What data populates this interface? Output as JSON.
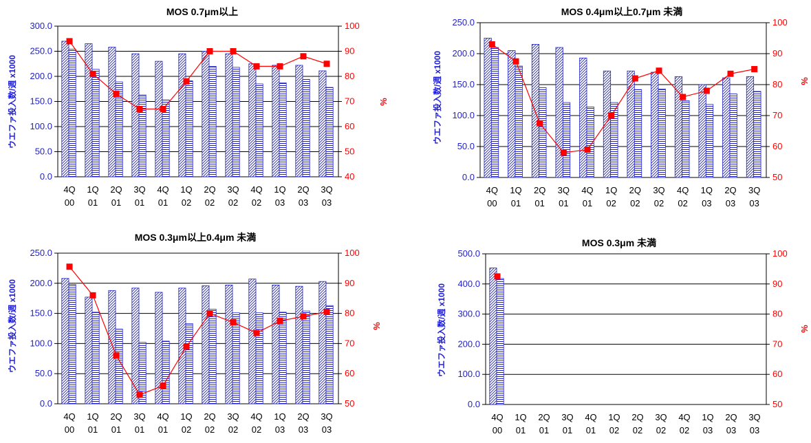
{
  "colors": {
    "bar_outline": "#1f1fd0",
    "bar_fill_a": "#ffffff",
    "hatch_diagonal": "#1f1fd0",
    "hatch_horizontal": "#1f1fd0",
    "line": "#ff0000",
    "marker": "#ff0000",
    "left_axis_text": "#1f1fd0",
    "right_axis_text": "#ff0000",
    "gridline": "#000000"
  },
  "chart_data": [
    {
      "type": "bar",
      "title": "MOS 0.7μm以上",
      "ylabel": "ウエファ投入数/週 x1000",
      "y2label": "%",
      "categories": [
        [
          "4Q",
          "00"
        ],
        [
          "1Q",
          "01"
        ],
        [
          "2Q",
          "01"
        ],
        [
          "3Q",
          "01"
        ],
        [
          "4Q",
          "01"
        ],
        [
          "1Q",
          "02"
        ],
        [
          "2Q",
          "02"
        ],
        [
          "3Q",
          "02"
        ],
        [
          "4Q",
          "02"
        ],
        [
          "1Q",
          "03"
        ],
        [
          "2Q",
          "03"
        ],
        [
          "3Q",
          "03"
        ]
      ],
      "ylim": [
        0,
        300
      ],
      "yticks": [
        "0.0",
        "50.0",
        "100.0",
        "150.0",
        "200.0",
        "250.0",
        "300.0"
      ],
      "y2lim": [
        40,
        100
      ],
      "y2ticks": [
        "40",
        "50",
        "60",
        "70",
        "80",
        "90",
        "100"
      ],
      "series": [
        {
          "kind": "bar",
          "pattern": "diagonal",
          "values": [
            270,
            265,
            258,
            245,
            230,
            245,
            250,
            245,
            225,
            222,
            222,
            211
          ]
        },
        {
          "kind": "bar",
          "pattern": "horizontal",
          "values": [
            254,
            214,
            189,
            163,
            153,
            191,
            220,
            218,
            185,
            187,
            194,
            178
          ]
        },
        {
          "kind": "line",
          "axis": "right",
          "values": [
            94,
            81,
            73,
            67,
            67,
            78,
            90,
            90,
            84,
            84,
            88,
            85
          ]
        }
      ]
    },
    {
      "type": "bar",
      "title": "MOS 0.4μm以上0.7μm 未満",
      "ylabel": "ウエファ投入数/週 x1000",
      "y2label": "%",
      "categories": [
        [
          "4Q",
          "00"
        ],
        [
          "1Q",
          "01"
        ],
        [
          "2Q",
          "01"
        ],
        [
          "3Q",
          "01"
        ],
        [
          "4Q",
          "01"
        ],
        [
          "1Q",
          "02"
        ],
        [
          "2Q",
          "02"
        ],
        [
          "3Q",
          "02"
        ],
        [
          "4Q",
          "02"
        ],
        [
          "1Q",
          "03"
        ],
        [
          "2Q",
          "03"
        ],
        [
          "3Q",
          "03"
        ]
      ],
      "ylim": [
        0,
        250
      ],
      "yticks": [
        "0.0",
        "50.0",
        "100.0",
        "150.0",
        "200.0",
        "250.0"
      ],
      "y2lim": [
        50,
        100
      ],
      "y2ticks": [
        "50",
        "60",
        "70",
        "80",
        "90",
        "100"
      ],
      "series": [
        {
          "kind": "bar",
          "pattern": "diagonal",
          "values": [
            225,
            205,
            215,
            210,
            193,
            172,
            172,
            170,
            163,
            150,
            161,
            163
          ]
        },
        {
          "kind": "bar",
          "pattern": "horizontal",
          "values": [
            210,
            180,
            145,
            121,
            114,
            121,
            142,
            143,
            124,
            118,
            135,
            139
          ]
        },
        {
          "kind": "line",
          "axis": "right",
          "values": [
            93,
            87.5,
            67.5,
            58,
            59,
            70,
            82,
            84.5,
            76,
            78,
            83.5,
            85
          ]
        }
      ]
    },
    {
      "type": "bar",
      "title": "MOS 0.3μm以上0.4μm 未満",
      "ylabel": "ウエファ投入数/週 x1000",
      "y2label": "%",
      "categories": [
        [
          "4Q",
          "00"
        ],
        [
          "1Q",
          "01"
        ],
        [
          "2Q",
          "01"
        ],
        [
          "3Q",
          "01"
        ],
        [
          "4Q",
          "01"
        ],
        [
          "1Q",
          "02"
        ],
        [
          "2Q",
          "02"
        ],
        [
          "3Q",
          "02"
        ],
        [
          "4Q",
          "02"
        ],
        [
          "1Q",
          "03"
        ],
        [
          "2Q",
          "03"
        ],
        [
          "3Q",
          "03"
        ]
      ],
      "ylim": [
        0,
        250
      ],
      "yticks": [
        "0.0",
        "50.0",
        "100.0",
        "150.0",
        "200.0",
        "250.0"
      ],
      "y2lim": [
        50,
        100
      ],
      "y2ticks": [
        "50",
        "60",
        "70",
        "80",
        "90",
        "100"
      ],
      "series": [
        {
          "kind": "bar",
          "pattern": "diagonal",
          "values": [
            208,
            177,
            188,
            192,
            185,
            192,
            196,
            197,
            207,
            197,
            195,
            203
          ]
        },
        {
          "kind": "bar",
          "pattern": "horizontal",
          "values": [
            198,
            152,
            124,
            102,
            104,
            133,
            157,
            151,
            151,
            152,
            154,
            163
          ]
        },
        {
          "kind": "line",
          "axis": "right",
          "values": [
            95.5,
            86,
            66,
            53,
            56,
            69,
            80,
            77,
            73.5,
            77.5,
            79,
            80.5
          ]
        }
      ]
    },
    {
      "type": "bar",
      "title": "MOS 0.3μm 未満",
      "ylabel": "ウエファ投入数/週 x1000",
      "y2label": "%",
      "categories": [
        [
          "4Q",
          "00"
        ],
        [
          "1Q",
          "01"
        ],
        [
          "2Q",
          "01"
        ],
        [
          "3Q",
          "01"
        ],
        [
          "4Q",
          "01"
        ],
        [
          "1Q",
          "02"
        ],
        [
          "2Q",
          "02"
        ],
        [
          "3Q",
          "02"
        ],
        [
          "4Q",
          "02"
        ],
        [
          "1Q",
          "03"
        ],
        [
          "2Q",
          "03"
        ],
        [
          "3Q",
          "03"
        ]
      ],
      "ylim": [
        0,
        500
      ],
      "yticks": [
        "0.0",
        "100.0",
        "200.0",
        "300.0",
        "400.0",
        "500.0"
      ],
      "y2lim": [
        50,
        100
      ],
      "y2ticks": [
        "50",
        "60",
        "70",
        "80",
        "90",
        "100"
      ],
      "series": [
        {
          "kind": "bar",
          "pattern": "diagonal",
          "values": [
            453,
            null,
            null,
            null,
            null,
            null,
            null,
            null,
            null,
            null,
            null,
            null
          ]
        },
        {
          "kind": "bar",
          "pattern": "horizontal",
          "values": [
            418,
            null,
            null,
            null,
            null,
            null,
            null,
            null,
            null,
            null,
            null,
            null
          ]
        },
        {
          "kind": "line",
          "axis": "right",
          "values": [
            92.5,
            null,
            null,
            null,
            null,
            null,
            null,
            null,
            null,
            null,
            null,
            null
          ]
        }
      ]
    }
  ]
}
